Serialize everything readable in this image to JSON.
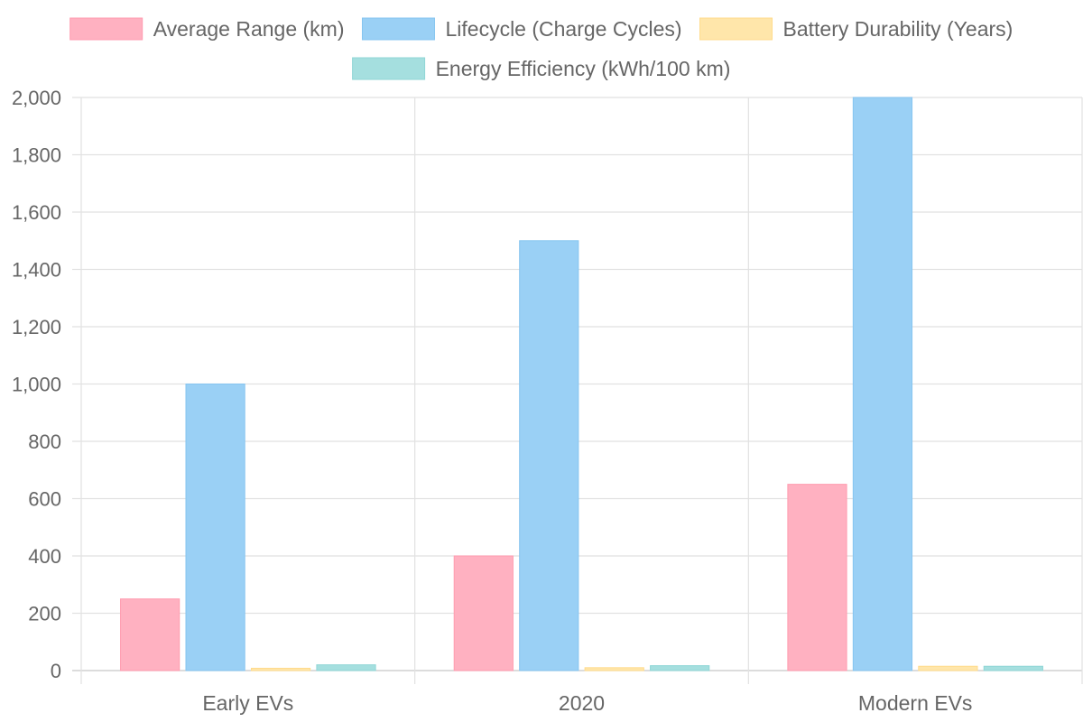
{
  "chart_data": {
    "type": "bar",
    "categories": [
      "Early EVs",
      "2020",
      "Modern EVs"
    ],
    "series": [
      {
        "name": "Average Range (km)",
        "values": [
          250,
          400,
          650
        ],
        "color": "#FFB1C1",
        "border": "#FF9CB0"
      },
      {
        "name": "Lifecycle (Charge Cycles)",
        "values": [
          1000,
          1500,
          2000
        ],
        "color": "#9AD0F5",
        "border": "#86C5F0"
      },
      {
        "name": "Battery Durability (Years)",
        "values": [
          8,
          10,
          15
        ],
        "color": "#FFE6AA",
        "border": "#FFDB8C"
      },
      {
        "name": "Energy Efficiency (kWh/100 km)",
        "values": [
          20,
          17,
          15
        ],
        "color": "#A5DFDF",
        "border": "#8FD6D6"
      }
    ],
    "yTicks": [
      "0",
      "200",
      "400",
      "600",
      "800",
      "1,000",
      "1,200",
      "1,400",
      "1,600",
      "1,800",
      "2,000"
    ],
    "ylim": [
      0,
      2000
    ],
    "ystep": 200,
    "grid": true,
    "legend_position": "top",
    "title": "",
    "xlabel": "",
    "ylabel": ""
  }
}
